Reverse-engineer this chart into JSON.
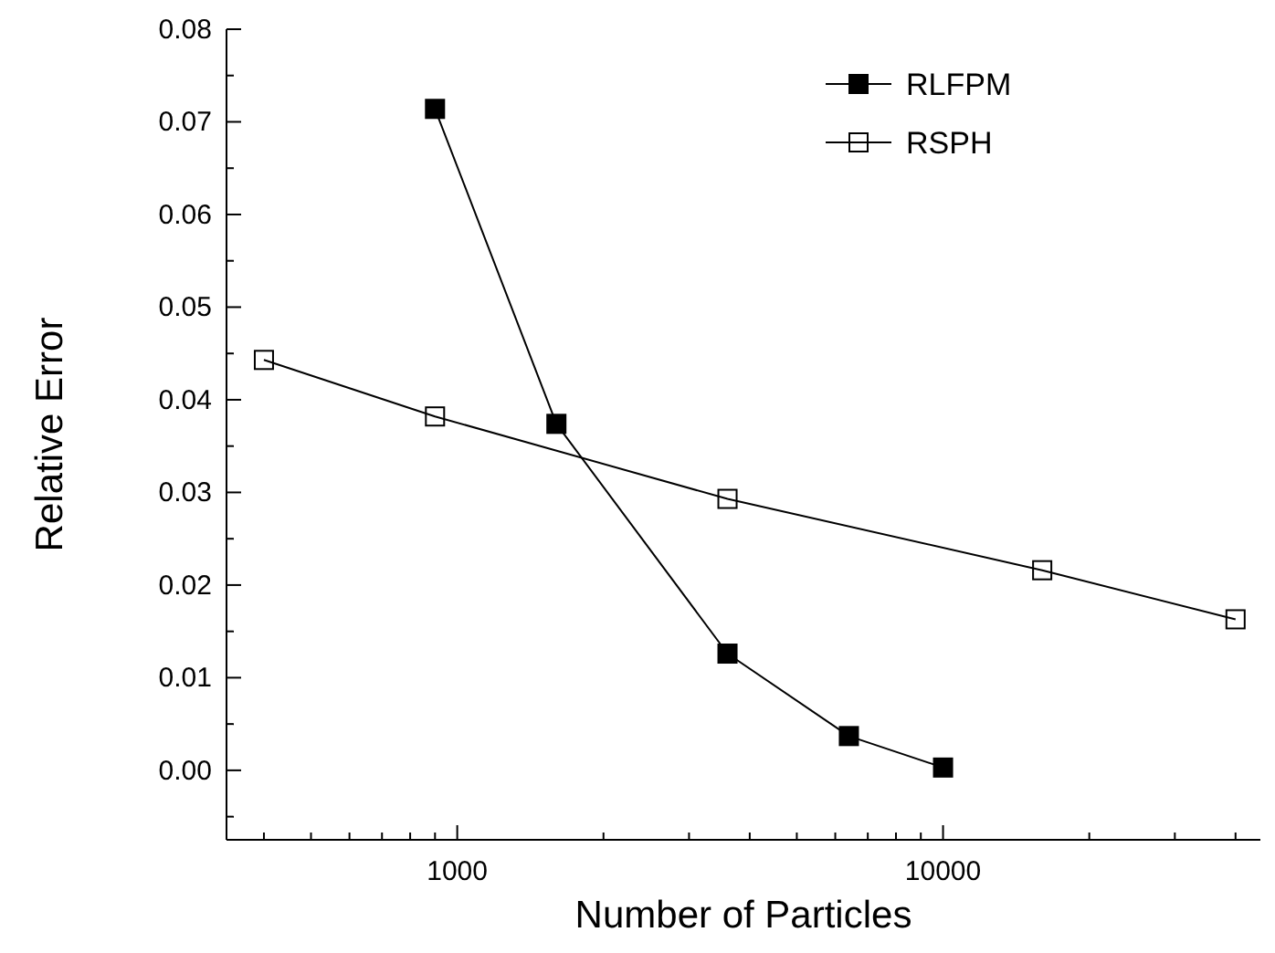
{
  "chart_data": {
    "type": "line",
    "xlabel": "Number of Particles",
    "ylabel": "Relative Error",
    "log": "x",
    "marker": "square",
    "legend": "top right",
    "grid": false,
    "xlim": [
      335,
      45000
    ],
    "ylim": [
      -0.0075,
      0.08
    ],
    "xticks": [
      {
        "value": 400,
        "label": null
      },
      {
        "value": 500,
        "label": null
      },
      {
        "value": 600,
        "label": null
      },
      {
        "value": 700,
        "label": null
      },
      {
        "value": 800,
        "label": null
      },
      {
        "value": 900,
        "label": null
      },
      1000,
      {
        "value": 2000,
        "label": null
      },
      {
        "value": 3000,
        "label": null
      },
      {
        "value": 4000,
        "label": null
      },
      {
        "value": 5000,
        "label": null
      },
      {
        "value": 6000,
        "label": null
      },
      {
        "value": 7000,
        "label": null
      },
      {
        "value": 8000,
        "label": null
      },
      {
        "value": 9000,
        "label": null
      },
      10000,
      {
        "value": 20000,
        "label": null
      },
      {
        "value": 30000,
        "label": null
      },
      {
        "value": 40000,
        "label": null
      }
    ],
    "yticks": [
      {
        "value": -0.005,
        "label": null
      },
      {
        "value": 0,
        "label": "0.00"
      },
      {
        "value": 0.005,
        "label": null
      },
      {
        "value": 0.01,
        "label": "0.01"
      },
      {
        "value": 0.015,
        "label": null
      },
      {
        "value": 0.02,
        "label": "0.02"
      },
      {
        "value": 0.025,
        "label": null
      },
      {
        "value": 0.03,
        "label": "0.03"
      },
      {
        "value": 0.035,
        "label": null
      },
      {
        "value": 0.04,
        "label": "0.04"
      },
      {
        "value": 0.045,
        "label": null
      },
      {
        "value": 0.05,
        "label": "0.05"
      },
      {
        "value": 0.055,
        "label": null
      },
      {
        "value": 0.06,
        "label": "0.06"
      },
      {
        "value": 0.065,
        "label": null
      },
      {
        "value": 0.07,
        "label": "0.07"
      },
      {
        "value": 0.075,
        "label": null
      },
      {
        "value": 0.08,
        "label": "0.08"
      }
    ],
    "series": [
      {
        "name": "RLFPM",
        "color": "#000000",
        "x": [
          900,
          1600,
          3600,
          6400,
          10000
        ],
        "values": [
          0.0714,
          0.0374,
          0.0126,
          0.0037,
          0.0003
        ]
      },
      {
        "name": "RSPH",
        "color": "#000000",
        "x": [
          400,
          900,
          3600,
          16000,
          40000
        ],
        "values": [
          0.0443,
          0.0382,
          0.0293,
          0.0216,
          0.0163
        ]
      }
    ]
  }
}
